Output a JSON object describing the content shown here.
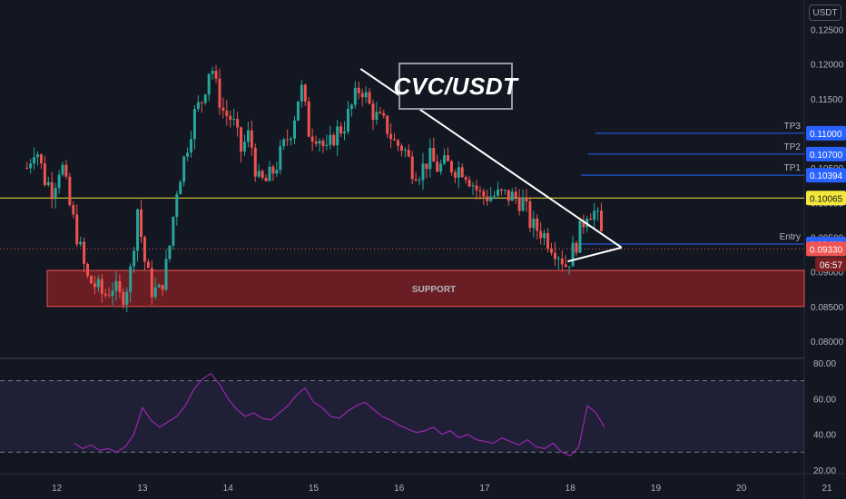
{
  "title": "CVC/USDT",
  "currency_button": "USDT",
  "colors": {
    "background": "#131722",
    "up": "#26a69a",
    "down": "#ef5350",
    "yellow": "#f5e63b",
    "blue": "#2962ff",
    "support": "#7a1e22",
    "rsi": "#9c27b0"
  },
  "chart_data": [
    {
      "type": "candlestick",
      "symbol": "CVC/USDT",
      "y_range": [
        0.0775,
        0.1282
      ],
      "y_ticks": [
        "0.12500",
        "0.12000",
        "0.11500",
        "0.11000",
        "0.10500",
        "0.10000",
        "0.09500",
        "0.09000",
        "0.08500",
        "0.08000"
      ],
      "x_ticks": [
        "12",
        "13",
        "14",
        "15",
        "16",
        "17",
        "18",
        "19",
        "20",
        "21"
      ],
      "close_path": [
        [
          11.65,
          0.105
        ],
        [
          11.75,
          0.1085
        ],
        [
          11.85,
          0.1035
        ],
        [
          11.95,
          0.102
        ],
        [
          12.05,
          0.106
        ],
        [
          12.15,
          0.0995
        ],
        [
          12.25,
          0.0945
        ],
        [
          12.35,
          0.089
        ],
        [
          12.45,
          0.088
        ],
        [
          12.55,
          0.0865
        ],
        [
          12.65,
          0.088
        ],
        [
          12.75,
          0.086
        ],
        [
          12.85,
          0.089
        ],
        [
          12.95,
          0.1
        ],
        [
          13.0,
          0.093
        ],
        [
          13.1,
          0.0875
        ],
        [
          13.2,
          0.087
        ],
        [
          13.3,
          0.092
        ],
        [
          13.4,
          0.102
        ],
        [
          13.5,
          0.107
        ],
        [
          13.6,
          0.1125
        ],
        [
          13.7,
          0.115
        ],
        [
          13.8,
          0.1205
        ],
        [
          13.85,
          0.117
        ],
        [
          13.95,
          0.113
        ],
        [
          14.05,
          0.112
        ],
        [
          14.15,
          0.1075
        ],
        [
          14.25,
          0.11
        ],
        [
          14.35,
          0.103
        ],
        [
          14.45,
          0.103
        ],
        [
          14.55,
          0.105
        ],
        [
          14.65,
          0.108
        ],
        [
          14.75,
          0.111
        ],
        [
          14.85,
          0.117
        ],
        [
          14.95,
          0.11
        ],
        [
          15.05,
          0.11
        ],
        [
          15.15,
          0.107
        ],
        [
          15.25,
          0.11
        ],
        [
          15.35,
          0.111
        ],
        [
          15.45,
          0.114
        ],
        [
          15.55,
          0.117
        ],
        [
          15.65,
          0.114
        ],
        [
          15.75,
          0.112
        ],
        [
          15.85,
          0.111
        ],
        [
          15.95,
          0.1085
        ],
        [
          16.05,
          0.108
        ],
        [
          16.15,
          0.105
        ],
        [
          16.25,
          0.1045
        ],
        [
          16.35,
          0.1065
        ],
        [
          16.45,
          0.105
        ],
        [
          16.55,
          0.1055
        ],
        [
          16.65,
          0.105
        ],
        [
          16.75,
          0.105
        ],
        [
          16.85,
          0.103
        ],
        [
          16.95,
          0.101
        ],
        [
          17.05,
          0.101
        ],
        [
          17.15,
          0.101
        ],
        [
          17.25,
          0.101
        ],
        [
          17.35,
          0.1008
        ],
        [
          17.45,
          0.1
        ],
        [
          17.55,
          0.0965
        ],
        [
          17.65,
          0.096
        ],
        [
          17.75,
          0.0945
        ],
        [
          17.85,
          0.093
        ],
        [
          17.95,
          0.091
        ],
        [
          18.05,
          0.0935
        ],
        [
          18.12,
          0.096
        ],
        [
          18.2,
          0.099
        ],
        [
          18.3,
          0.0985
        ],
        [
          18.38,
          0.0945
        ]
      ],
      "ask_price_badge": "0.09330",
      "countdown": "06:57",
      "levels": [
        {
          "label": "TP3",
          "value": 0.11,
          "badge": "0.11000"
        },
        {
          "label": "TP2",
          "value": 0.107,
          "badge": "0.10700"
        },
        {
          "label": "TP1",
          "value": 0.10394,
          "badge": "0.10394"
        },
        {
          "label": "",
          "value": 0.10065,
          "badge": "0.10065"
        },
        {
          "label": "Entry",
          "value": 0.094,
          "badge": "0.09400"
        }
      ],
      "support": {
        "label": "SUPPORT",
        "y_top": 0.0902,
        "y_bottom": 0.085
      },
      "annotations": {
        "descending_line": [
          [
            15.55,
            0.1193
          ],
          [
            18.6,
            0.0935
          ]
        ],
        "lower_line": [
          [
            17.97,
            0.0915
          ],
          [
            18.6,
            0.0935
          ]
        ]
      }
    },
    {
      "type": "line",
      "name": "RSI",
      "y_range": [
        18,
        82
      ],
      "y_ticks": [
        "80.00",
        "60.00",
        "40.00",
        "20.00"
      ],
      "bands": [
        70,
        30
      ],
      "x": [
        12.2,
        12.3,
        12.4,
        12.5,
        12.6,
        12.7,
        12.8,
        12.9,
        13.0,
        13.1,
        13.2,
        13.3,
        13.4,
        13.5,
        13.6,
        13.7,
        13.8,
        13.9,
        14.0,
        14.1,
        14.2,
        14.3,
        14.4,
        14.5,
        14.6,
        14.7,
        14.8,
        14.9,
        15.0,
        15.1,
        15.2,
        15.3,
        15.4,
        15.5,
        15.6,
        15.7,
        15.8,
        15.9,
        16.0,
        16.1,
        16.2,
        16.3,
        16.4,
        16.5,
        16.6,
        16.7,
        16.8,
        16.9,
        17.0,
        17.1,
        17.2,
        17.3,
        17.4,
        17.5,
        17.6,
        17.7,
        17.8,
        17.9,
        18.0,
        18.1,
        18.2,
        18.3,
        18.4
      ],
      "values": [
        35,
        32,
        34,
        31,
        32,
        30,
        33,
        40,
        55,
        48,
        44,
        47,
        50,
        56,
        65,
        71,
        74,
        68,
        60,
        54,
        50,
        52,
        49,
        48,
        52,
        56,
        62,
        66,
        58,
        55,
        50,
        49,
        53,
        56,
        58,
        54,
        50,
        48,
        45,
        43,
        41,
        42,
        44,
        40,
        42,
        38,
        40,
        37,
        36,
        35,
        38,
        36,
        34,
        37,
        33,
        32,
        35,
        30,
        28,
        33,
        56,
        52,
        44
      ]
    }
  ]
}
